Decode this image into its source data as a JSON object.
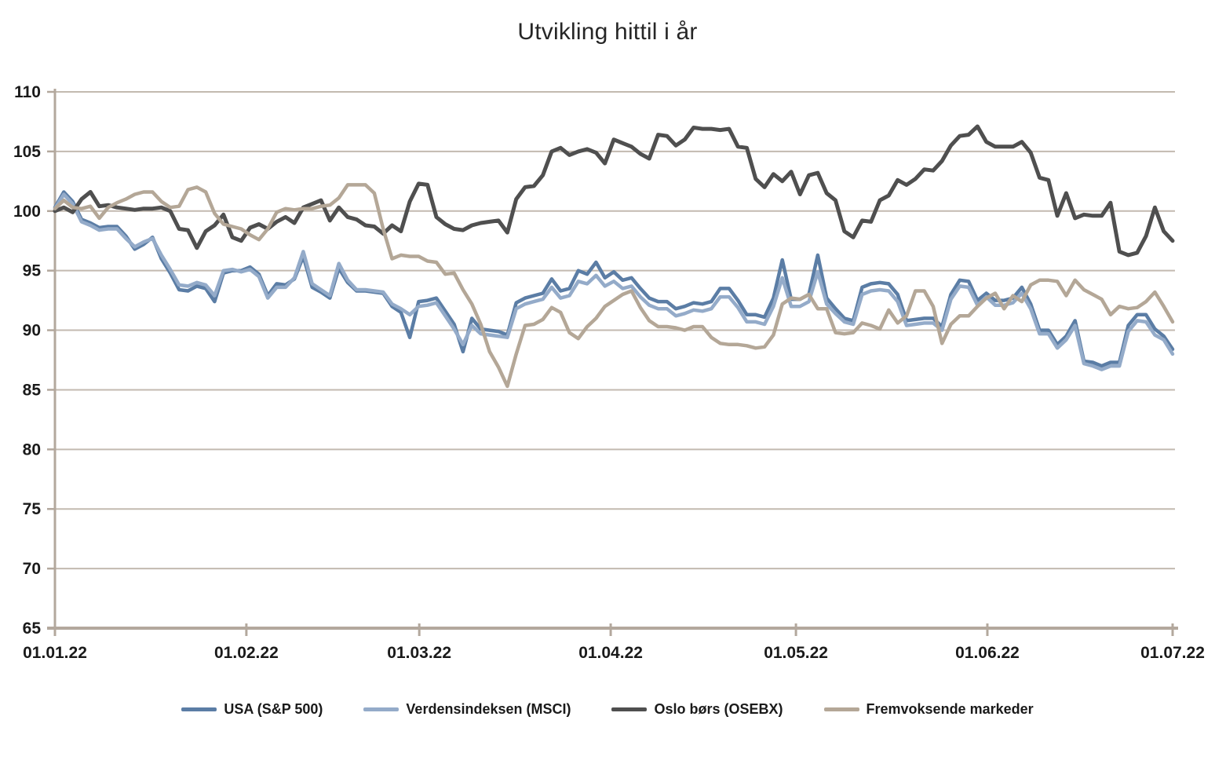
{
  "chart_data": {
    "type": "line",
    "title": "Utvikling hittil i år",
    "xlabel": "",
    "ylabel": "",
    "ylim": [
      65,
      110
    ],
    "y_ticks": [
      65,
      70,
      75,
      80,
      85,
      90,
      95,
      100,
      105,
      110
    ],
    "x_tick_labels": [
      "01.01.22",
      "01.02.22",
      "01.03.22",
      "01.04.22",
      "01.05.22",
      "01.06.22",
      "01.07.22"
    ],
    "x_tick_days": [
      0,
      31,
      59,
      90,
      120,
      151,
      181
    ],
    "x_total_days": 181,
    "grid": "horizontal",
    "legend_position": "bottom",
    "axis_color": "#b3a89d",
    "gridline_color": "#c3bab0",
    "tick_label_color": "#1a1a1a",
    "title_color": "#262626",
    "series": [
      {
        "name": "USA (S&P 500)",
        "color": "#5b7da5",
        "values": [
          100.3,
          101.6,
          100.8,
          99.3,
          99.0,
          98.6,
          98.7,
          98.7,
          97.9,
          96.8,
          97.2,
          97.8,
          96.0,
          94.8,
          93.4,
          93.3,
          93.7,
          93.5,
          92.4,
          94.8,
          95.0,
          95.0,
          95.3,
          94.7,
          92.9,
          93.9,
          93.8,
          94.3,
          96.2,
          93.6,
          93.2,
          92.7,
          95.2,
          94.0,
          93.3,
          93.3,
          93.2,
          93.1,
          92.0,
          91.5,
          89.4,
          92.4,
          92.5,
          92.7,
          91.6,
          90.5,
          88.2,
          91.0,
          90.1,
          90.0,
          89.9,
          89.6,
          92.3,
          92.7,
          92.9,
          93.1,
          94.3,
          93.3,
          93.5,
          95.0,
          94.7,
          95.7,
          94.4,
          94.9,
          94.2,
          94.4,
          93.5,
          92.7,
          92.4,
          92.4,
          91.8,
          92.0,
          92.3,
          92.2,
          92.4,
          93.5,
          93.5,
          92.5,
          91.3,
          91.3,
          91.1,
          92.7,
          95.9,
          92.6,
          92.6,
          93.0,
          96.3,
          92.7,
          91.8,
          91.0,
          90.8,
          93.6,
          93.9,
          94.0,
          93.9,
          93.0,
          90.8,
          90.9,
          91.0,
          91.0,
          90.3,
          93.0,
          94.2,
          94.1,
          92.5,
          93.1,
          92.5,
          92.5,
          92.7,
          93.6,
          92.2,
          90.0,
          90.0,
          88.8,
          89.5,
          90.8,
          87.4,
          87.3,
          87.0,
          87.3,
          87.3,
          90.4,
          91.3,
          91.3,
          90.1,
          89.5,
          88.4
        ]
      },
      {
        "name": "Verdensindeksen (MSCI)",
        "color": "#94abc9",
        "values": [
          100.2,
          101.4,
          100.6,
          99.1,
          98.8,
          98.4,
          98.5,
          98.5,
          97.7,
          97.0,
          97.4,
          97.7,
          96.3,
          95.1,
          93.8,
          93.7,
          94.0,
          93.8,
          92.9,
          95.0,
          95.1,
          94.9,
          95.1,
          94.5,
          92.7,
          93.6,
          93.6,
          94.4,
          96.6,
          93.9,
          93.4,
          92.9,
          95.6,
          94.2,
          93.4,
          93.4,
          93.3,
          93.2,
          92.2,
          91.8,
          91.3,
          92.0,
          92.1,
          92.3,
          91.2,
          90.1,
          88.8,
          90.4,
          89.7,
          89.6,
          89.5,
          89.4,
          91.8,
          92.2,
          92.4,
          92.6,
          93.6,
          92.7,
          92.9,
          94.1,
          93.9,
          94.6,
          93.7,
          94.1,
          93.5,
          93.7,
          92.8,
          92.1,
          91.8,
          91.8,
          91.2,
          91.4,
          91.7,
          91.6,
          91.8,
          92.8,
          92.8,
          91.9,
          90.7,
          90.7,
          90.5,
          92.0,
          94.4,
          92.0,
          92.0,
          92.4,
          94.9,
          92.2,
          91.4,
          90.7,
          90.5,
          93.0,
          93.3,
          93.4,
          93.3,
          92.4,
          90.4,
          90.5,
          90.6,
          90.6,
          90.0,
          92.6,
          93.7,
          93.6,
          92.1,
          92.8,
          92.1,
          92.1,
          92.3,
          93.1,
          91.8,
          89.7,
          89.7,
          88.5,
          89.2,
          90.4,
          87.2,
          87.0,
          86.7,
          87.0,
          87.0,
          89.9,
          90.8,
          90.7,
          89.6,
          89.2,
          88.0
        ]
      },
      {
        "name": "Oslo børs (OSEBX)",
        "color": "#4f4f4f",
        "values": [
          100.0,
          100.3,
          99.9,
          101.0,
          101.6,
          100.4,
          100.5,
          100.3,
          100.2,
          100.1,
          100.2,
          100.2,
          100.3,
          100.0,
          98.5,
          98.4,
          96.9,
          98.3,
          98.8,
          99.7,
          97.8,
          97.5,
          98.6,
          98.9,
          98.5,
          99.1,
          99.5,
          99.0,
          100.3,
          100.6,
          100.9,
          99.2,
          100.3,
          99.5,
          99.3,
          98.8,
          98.7,
          98.1,
          98.8,
          98.3,
          100.8,
          102.3,
          102.2,
          99.5,
          98.9,
          98.5,
          98.4,
          98.8,
          99.0,
          99.1,
          99.2,
          98.2,
          101.0,
          102.0,
          102.1,
          103.0,
          105.0,
          105.3,
          104.7,
          105.0,
          105.2,
          104.9,
          104.0,
          106.0,
          105.7,
          105.4,
          104.8,
          104.4,
          106.4,
          106.3,
          105.5,
          106.0,
          107.0,
          106.9,
          106.9,
          106.8,
          106.9,
          105.4,
          105.3,
          102.7,
          102.0,
          103.1,
          102.5,
          103.3,
          101.4,
          103.0,
          103.2,
          101.5,
          100.9,
          98.3,
          97.8,
          99.2,
          99.1,
          100.9,
          101.3,
          102.6,
          102.2,
          102.7,
          103.5,
          103.4,
          104.2,
          105.5,
          106.3,
          106.4,
          107.1,
          105.8,
          105.4,
          105.4,
          105.4,
          105.8,
          104.9,
          102.8,
          102.6,
          99.6,
          101.5,
          99.4,
          99.7,
          99.6,
          99.6,
          100.7,
          96.6,
          96.3,
          96.5,
          97.9,
          100.3,
          98.3,
          97.5
        ]
      },
      {
        "name": "Fremvoksende markeder",
        "color": "#b4a797",
        "values": [
          100.2,
          100.9,
          100.3,
          100.2,
          100.4,
          99.4,
          100.3,
          100.7,
          101.0,
          101.4,
          101.6,
          101.6,
          100.8,
          100.3,
          100.4,
          101.8,
          102.0,
          101.6,
          99.8,
          98.9,
          98.7,
          98.5,
          98.0,
          97.6,
          98.5,
          99.9,
          100.2,
          100.1,
          100.2,
          100.2,
          100.4,
          100.5,
          101.1,
          102.2,
          102.2,
          102.2,
          101.5,
          98.5,
          96.0,
          96.3,
          96.2,
          96.2,
          95.8,
          95.7,
          94.7,
          94.8,
          93.4,
          92.2,
          90.5,
          88.2,
          86.9,
          85.3,
          88.0,
          90.4,
          90.5,
          90.9,
          91.9,
          91.5,
          89.8,
          89.3,
          90.3,
          91.0,
          92.0,
          92.5,
          93.0,
          93.3,
          91.9,
          90.8,
          90.3,
          90.3,
          90.2,
          90.0,
          90.3,
          90.3,
          89.4,
          88.9,
          88.8,
          88.8,
          88.7,
          88.5,
          88.6,
          89.6,
          92.2,
          92.7,
          92.6,
          93.0,
          91.8,
          91.8,
          89.8,
          89.7,
          89.8,
          90.6,
          90.4,
          90.1,
          91.7,
          90.6,
          91.2,
          93.3,
          93.3,
          92.0,
          88.9,
          90.5,
          91.2,
          91.2,
          92.0,
          92.7,
          93.1,
          91.8,
          92.9,
          92.4,
          93.8,
          94.2,
          94.2,
          94.1,
          92.9,
          94.2,
          93.4,
          93.0,
          92.6,
          91.3,
          92.0,
          91.8,
          91.9,
          92.4,
          93.2,
          92.0,
          90.7
        ]
      }
    ]
  }
}
